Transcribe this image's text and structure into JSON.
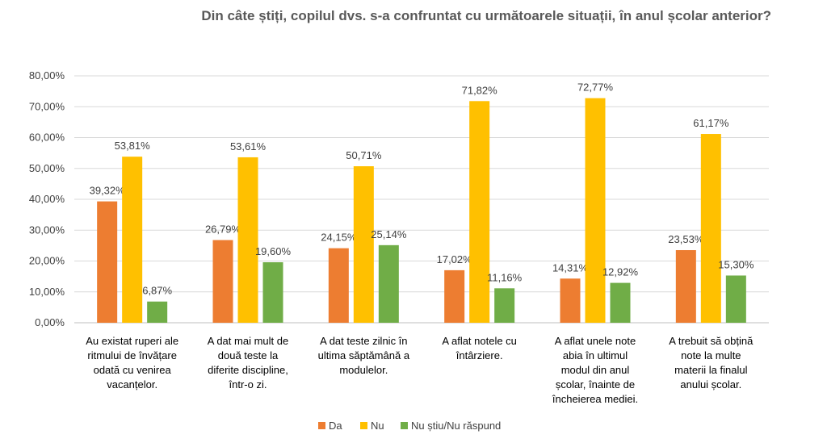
{
  "chart_data": {
    "type": "bar",
    "title": "Din câte știți, copilul dvs. s-a confruntat cu următoarele situații, în anul școlar anterior?",
    "xlabel": "",
    "ylabel": "",
    "ylim": [
      0,
      80
    ],
    "yticks": [
      "0,00%",
      "10,00%",
      "20,00%",
      "30,00%",
      "40,00%",
      "50,00%",
      "60,00%",
      "70,00%",
      "80,00%"
    ],
    "grid": true,
    "legend_position": "bottom",
    "categories": [
      [
        "Au existat ruperi ale",
        "ritmului de învățare",
        "odată cu venirea",
        "vacanțelor."
      ],
      [
        "A dat mai mult de",
        "două teste la",
        "diferite discipline,",
        "într-o zi."
      ],
      [
        "A dat teste zilnic în",
        "ultima săptămână a",
        "modulelor."
      ],
      [
        "A aflat notele cu",
        "întârziere."
      ],
      [
        "A aflat unele note",
        "abia în ultimul",
        "modul din anul",
        "școlar, înainte de",
        "încheierea mediei."
      ],
      [
        "A trebuit să obțină",
        "note la multe",
        "materii la finalul",
        "anului școlar."
      ]
    ],
    "series": [
      {
        "name": "Da",
        "color": "#ED7D31",
        "values": [
          39.32,
          26.79,
          24.15,
          17.02,
          14.31,
          23.53
        ],
        "labels": [
          "39,32%",
          "26,79%",
          "24,15%",
          "17,02%",
          "14,31%",
          "23,53%"
        ]
      },
      {
        "name": "Nu",
        "color": "#FFC000",
        "values": [
          53.81,
          53.61,
          50.71,
          71.82,
          72.77,
          61.17
        ],
        "labels": [
          "53,81%",
          "53,61%",
          "50,71%",
          "71,82%",
          "72,77%",
          "61,17%"
        ]
      },
      {
        "name": "Nu știu/Nu răspund",
        "color": "#70AD47",
        "values": [
          6.87,
          19.6,
          25.14,
          11.16,
          12.92,
          15.3
        ],
        "labels": [
          "6,87%",
          "19,60%",
          "25,14%",
          "11,16%",
          "12,92%",
          "15,30%"
        ]
      }
    ]
  }
}
